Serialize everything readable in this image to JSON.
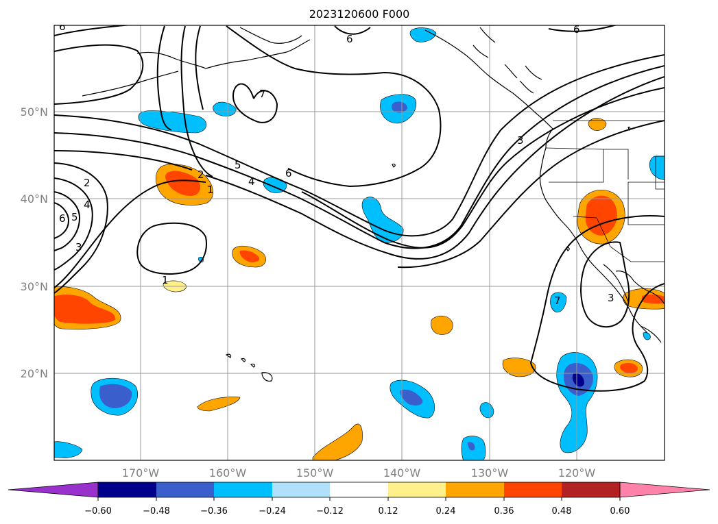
{
  "title": "2023120600 F000",
  "lat_labels": [
    "50°N",
    "40°N",
    "30°N",
    "20°N"
  ],
  "lon_labels": [
    "170°W",
    "160°W",
    "150°W",
    "140°W",
    "130°W",
    "120°W"
  ],
  "colorbar": {
    "colors": [
      "#9932cc",
      "#00008b",
      "#3a5fcd",
      "#00bfff",
      "#afe2fa",
      "#ffffff",
      "#fff08c",
      "#ffa500",
      "#ff4500",
      "#b22222",
      "#ff82ab"
    ],
    "tick_labels": [
      "−0.60",
      "−0.48",
      "−0.36",
      "−0.24",
      "−0.12",
      "0.12",
      "0.24",
      "0.36",
      "0.48",
      "0.60"
    ]
  },
  "contour_labels": [
    "6",
    "6",
    "6",
    "7",
    "5",
    "4",
    "6",
    "3",
    "2",
    "2",
    "1",
    "4",
    "5",
    "6",
    "3",
    "1",
    "7",
    "3"
  ]
}
